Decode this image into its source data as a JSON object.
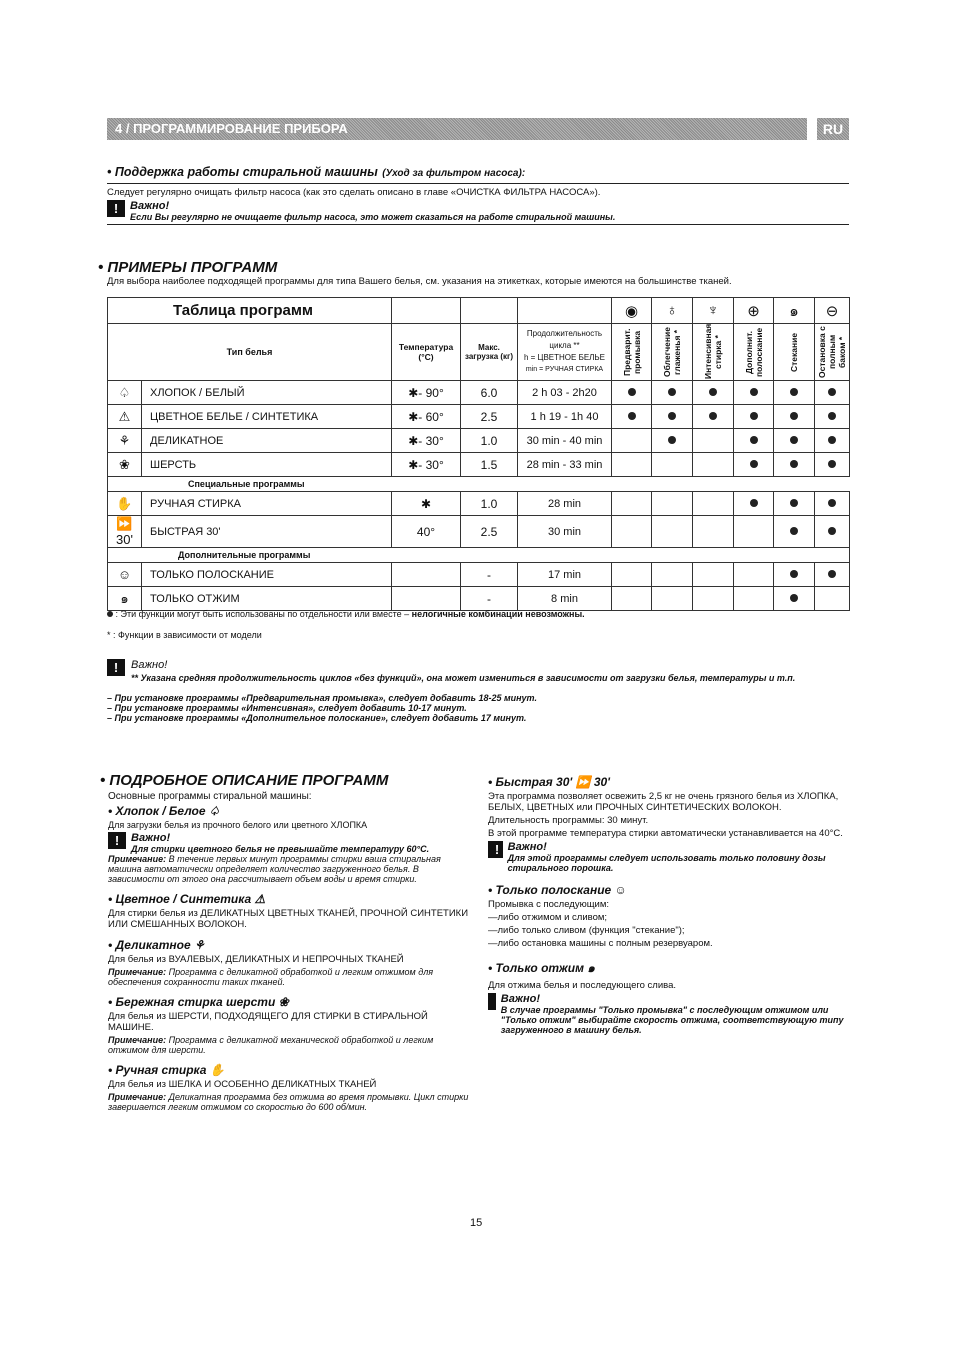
{
  "header": {
    "title": "4 / ПРОГРАММИРОВАНИЕ ПРИБОРА",
    "lang": "RU"
  },
  "maintenance": {
    "title": "• Поддержка работы стиральной машины",
    "title_note": "(Уход за фильтром насоса):",
    "text": "Следует регулярно очищать фильтр насоса (как это сделать описано в главе «ОЧИСТКА ФИЛЬТРА НАСОСА»).",
    "important": "Важно!",
    "warning": "Если Вы регулярно не очищаете фильтр насоса, это может сказаться на работе стиральной машины."
  },
  "examples": {
    "title": "• ПРИМЕРЫ ПРОГРАММ",
    "intro": "Для выбора наиболее подходящей программы для типа Вашего белья, см. указания на этикетках, которые имеются на большинстве тканей."
  },
  "table": {
    "title": "Таблица программ",
    "col_type": "Тип белья",
    "col_temp": "Температура (°С)",
    "col_load": "Макс. загрузка (кг)",
    "col_dur_1": "Продолжительность цикла **",
    "col_dur_2": "h = ЦВЕТНОЕ БЕЛЬЕ",
    "col_dur_3": "min = РУЧНАЯ СТИРКА",
    "functions": [
      {
        "label": "Предварит. промывка",
        "icon": "prewash-icon"
      },
      {
        "label": "Облегчение глаженья *",
        "icon": "easy-iron-icon"
      },
      {
        "label": "Интенсивная стирка *",
        "icon": "intensive-icon"
      },
      {
        "label": "Дополнит. полоскание",
        "icon": "extra-rinse-icon"
      },
      {
        "label": "Стекание",
        "icon": "drain-icon"
      },
      {
        "label": "Остановка с полным баком *",
        "icon": "rinse-hold-icon"
      }
    ],
    "section_special": "Специальные программы",
    "section_extra": "Дополнительные программы",
    "rows": [
      {
        "icon": "cotton-icon",
        "glyph": "♤",
        "name": "ХЛОПОК / БЕЛЫЙ",
        "temp": "✱- 90°",
        "load": "6.0",
        "dur": "2 h 03 - 2h20",
        "dots": [
          1,
          1,
          1,
          1,
          1,
          1
        ]
      },
      {
        "icon": "synthetic-icon",
        "glyph": "⚠",
        "name": "ЦВЕТНОЕ БЕЛЬЕ / СИНТЕТИКА",
        "temp": "✱- 60°",
        "load": "2.5",
        "dur": "1 h 19 - 1h 40",
        "dots": [
          1,
          1,
          1,
          1,
          1,
          1
        ]
      },
      {
        "icon": "delicate-icon",
        "glyph": "⚘",
        "name": "ДЕЛИКАТНОЕ",
        "temp": "✱- 30°",
        "load": "1.0",
        "dur": "30 min - 40 min",
        "dots": [
          0,
          1,
          0,
          1,
          1,
          1
        ]
      },
      {
        "icon": "wool-icon",
        "glyph": "❀",
        "name": "ШЕРСТЬ",
        "temp": "✱- 30°",
        "load": "1.5",
        "dur": "28 min - 33 min",
        "dots": [
          0,
          0,
          0,
          1,
          1,
          1
        ]
      },
      {
        "icon": "hand-wash-icon",
        "glyph": "✋",
        "name": "РУЧНАЯ СТИРКА",
        "temp": "✱",
        "load": "1.0",
        "dur": "28 min",
        "dots": [
          0,
          0,
          0,
          1,
          1,
          1
        ]
      },
      {
        "icon": "quick-icon",
        "glyph": "⏩ 30'",
        "name": "БЫСТРАЯ 30'",
        "temp": "40°",
        "load": "2.5",
        "dur": "30 min",
        "dots": [
          0,
          0,
          0,
          0,
          1,
          1
        ]
      },
      {
        "icon": "rinse-icon",
        "glyph": "☺",
        "name": "ТОЛЬКО ПОЛОСКАНИЕ",
        "temp": "",
        "load": "-",
        "dur": "17 min",
        "dots": [
          0,
          0,
          0,
          0,
          1,
          1
        ]
      },
      {
        "icon": "spin-icon",
        "glyph": "๑",
        "name": "ТОЛЬКО ОТЖИМ",
        "temp": "",
        "load": "-",
        "dur": "8 min",
        "dots": [
          0,
          0,
          0,
          0,
          1,
          0
        ]
      }
    ]
  },
  "legend": {
    "dot_a": ": Эти функции могут быть использованы по отдельности или вместе – ",
    "dot_b": "нелогичные комбинации невозможны.",
    "star": "* : Функции в зависимости от модели"
  },
  "notes": {
    "important": "Важно!",
    "n1": "** Указана средняя продолжительность циклов «без функций», она может измениться в зависимости от загрузки белья, температуры и т.п.",
    "n2": "– При установке программы «Предварительная промывка», следует добавить 18-25 минут.",
    "n3": "– При установке программы «Интенсивная», следует добавить 10-17 минут.",
    "n4": "– При установке программы «Дополнительное полоскание», следует добавить 17 минут."
  },
  "details": {
    "title": "• ПОДРОБНОЕ ОПИСАНИЕ ПРОГРАММ",
    "intro": "Основные программы стиральной машины:",
    "cotton_t": "• Хлопок / Белое ♤",
    "cotton_d": "Для загрузки белья из прочного белого или цветного ХЛОПКА",
    "cotton_imp": "Важно!",
    "cotton_w": "Для стирки цветного белья не превышайте температуру 60°С.",
    "cotton_nl": "Примечание:",
    "cotton_n": " В течение первых минут программы стирки ваша стиральная машина автоматически определяет количество загруженного белья. В зависимости от этого она рассчитывает объем воды и время стирки.",
    "syn_t": "• Цветное / Синтетика ⚠",
    "syn_d": "Для стирки белья из ДЕЛИКАТНЫХ ЦВЕТНЫХ ТКАНЕЙ, ПРОЧНОЙ СИНТЕТИКИ ИЛИ СМЕШАННЫХ ВОЛОКОН.",
    "del_t": "• Деликатное ⚘",
    "del_d": "Для белья из ВУАЛЕВЫХ, ДЕЛИКАТНЫХ И НЕПРОЧНЫХ ТКАНЕЙ",
    "del_nl": "Примечание:",
    "del_n": " Программа с деликатной обработкой и легким отжимом для обеспечения сохранности таких тканей.",
    "wool_t": "• Бережная стирка шерсти ❀",
    "wool_d": "Для белья из ШЕРСТИ, ПОДХОДЯЩЕГО ДЛЯ СТИРКИ В СТИРАЛЬНОЙ МАШИНЕ.",
    "wool_nl": "Примечание:",
    "wool_n": " Программа с деликатной механической обработкой и легким отжимом для шерсти.",
    "hand_t": "• Ручная стирка ✋",
    "hand_d": "Для белья из ШЕЛКА И ОСОБЕННО ДЕЛИКАТНЫХ ТКАНЕЙ",
    "hand_nl": "Примечание:",
    "hand_n": " Деликатная программа без отжима во время промывки. Цикл стирки завершается легким отжимом со скоростью до 600 об/мин.",
    "quick_t": "• Быстрая 30' ⏩ 30'",
    "quick_d1": "Эта программа позволяет освежить 2,5 кг не очень грязного белья из ХЛОПКА, БЕЛЫХ, ЦВЕТНЫХ или ПРОЧНЫХ СИНТЕТИЧЕСКИХ ВОЛОКОН.",
    "quick_d2": "Длительность программы: 30 минут.",
    "quick_d3": "В этой программе температура стирки автоматически устанавливается на 40°С.",
    "quick_imp": "Важно!",
    "quick_w": "Для этой программы следует использовать только половину дозы стирального порошка.",
    "rinse_t": "• Только полоскание ☺",
    "rinse_d1": "Промывка с последующим:",
    "rinse_d2": "—либо отжимом и сливом;",
    "rinse_d3": "—либо только сливом (функция \"стекание\");",
    "rinse_d4": "—либо остановка машины с полным резервуаром.",
    "spin_t": "• Только отжим ๑",
    "spin_d": "Для отжима белья и последующего слива.",
    "spin_imp": "Важно!",
    "spin_w": "В случае программы \"Только промывка\" с последующим отжимом или \"Только отжим\" выбирайте скорость отжима, соответствующую типу загруженного в машину белья."
  },
  "page_number": "15"
}
